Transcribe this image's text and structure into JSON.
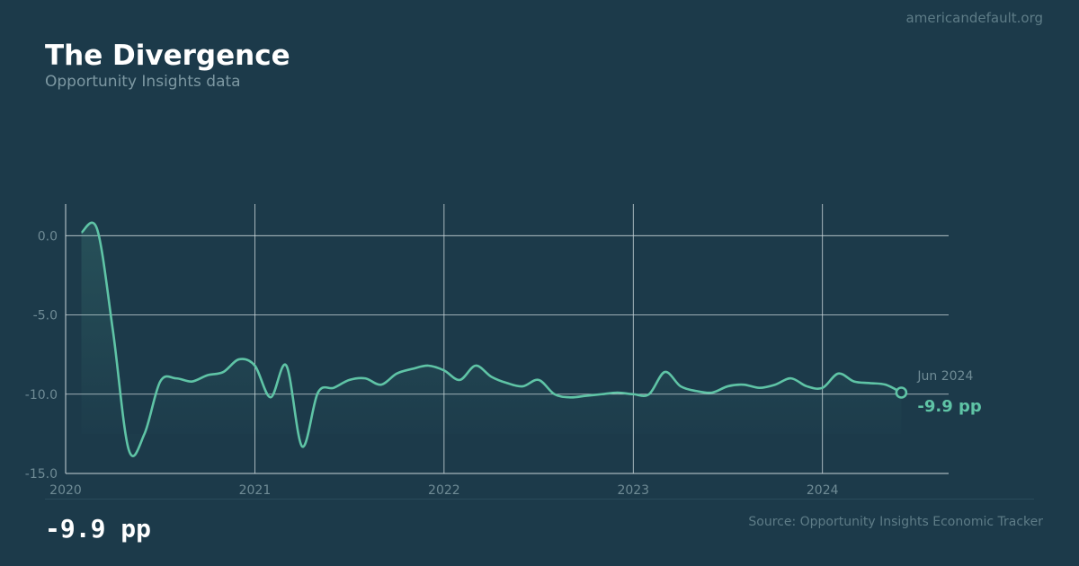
{
  "header": {
    "site": "americandefault.org",
    "title": "The Divergence",
    "subtitle": "Opportunity Insights data"
  },
  "footer": {
    "big_value": "-9.9 pp",
    "source": "Source: Opportunity Insights Economic Tracker"
  },
  "colors": {
    "background": "#1c3a4a",
    "line": "#5fc4a6",
    "grid": "#c8d4d8",
    "tick_text": "#6f8b95"
  },
  "chart_data": {
    "type": "line",
    "title": "The Divergence",
    "subtitle": "Opportunity Insights data",
    "xlabel": "",
    "ylabel": "",
    "x_tick_labels": [
      "2020",
      "2021",
      "2022",
      "2023",
      "2024"
    ],
    "y_tick_labels": [
      "0.0",
      "-5.0",
      "-10.0",
      "-15.0"
    ],
    "ylim": [
      -15,
      2
    ],
    "xlim": [
      "2020-01",
      "2024-09"
    ],
    "grid": true,
    "end_annotation": {
      "date": "Jun 2024",
      "value": "-9.9 pp"
    },
    "series": [
      {
        "x": [
          "2020-02",
          "2020-03",
          "2020-04",
          "2020-05",
          "2020-06",
          "2020-07",
          "2020-08",
          "2020-09",
          "2020-10",
          "2020-11",
          "2020-12",
          "2021-01",
          "2021-02",
          "2021-03",
          "2021-04",
          "2021-05",
          "2021-06",
          "2021-07",
          "2021-08",
          "2021-09",
          "2021-10",
          "2021-11",
          "2021-12",
          "2022-01",
          "2022-02",
          "2022-03",
          "2022-04",
          "2022-05",
          "2022-06",
          "2022-07",
          "2022-08",
          "2022-09",
          "2022-10",
          "2022-11",
          "2022-12",
          "2023-01",
          "2023-02",
          "2023-03",
          "2023-04",
          "2023-05",
          "2023-06",
          "2023-07",
          "2023-08",
          "2023-09",
          "2023-10",
          "2023-11",
          "2023-12",
          "2024-01",
          "2024-02",
          "2024-03",
          "2024-04",
          "2024-05",
          "2024-06"
        ],
        "y": [
          0.2,
          0.4,
          -6.0,
          -13.5,
          -12.5,
          -9.2,
          -9.0,
          -9.2,
          -8.8,
          -8.6,
          -7.8,
          -8.2,
          -10.2,
          -8.2,
          -13.3,
          -9.9,
          -9.6,
          -9.1,
          -9.0,
          -9.4,
          -8.7,
          -8.4,
          -8.2,
          -8.5,
          -9.1,
          -8.2,
          -8.9,
          -9.3,
          -9.5,
          -9.1,
          -10.0,
          -10.2,
          -10.1,
          -10.0,
          -9.9,
          -10.0,
          -10.0,
          -8.6,
          -9.5,
          -9.8,
          -9.9,
          -9.5,
          -9.4,
          -9.6,
          -9.4,
          -9.0,
          -9.5,
          -9.6,
          -8.7,
          -9.2,
          -9.3,
          -9.4,
          -9.9
        ]
      }
    ]
  }
}
